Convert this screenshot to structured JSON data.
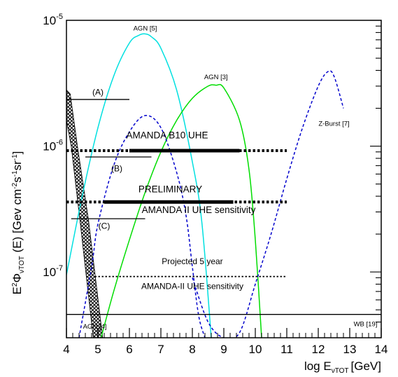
{
  "chart_data": {
    "type": "line",
    "xlabel": "log E",
    "xlabel_sub": "νTOT",
    "xlabel_unit": "[GeV]",
    "ylabel": "E",
    "ylabel_sup": "2",
    "ylabel_mid": "Φ",
    "ylabel_sub": "νTOT",
    "ylabel_tail": " (E) [Gev cm",
    "ylabel_unit_sup1": "-2",
    "ylabel_unit_mid1": "s",
    "ylabel_unit_sup2": "-1",
    "ylabel_unit_mid2": "sr",
    "ylabel_unit_sup3": "-1",
    "ylabel_unit_end": "]",
    "xlim": [
      4,
      14
    ],
    "ylim": [
      3e-08,
      1e-05
    ],
    "yscale": "log",
    "x_ticks": [
      4,
      5,
      6,
      7,
      8,
      9,
      10,
      11,
      12,
      13,
      14
    ],
    "x_tick_labels": [
      "4",
      "5",
      "6",
      "7",
      "8",
      "9",
      "10",
      "11",
      "12",
      "13",
      "14"
    ],
    "y_ticks": [
      {
        "value": 1e-05,
        "base": "10",
        "exp": "-5"
      },
      {
        "value": 1e-06,
        "base": "10",
        "exp": "-6"
      },
      {
        "value": 1e-07,
        "base": "10",
        "exp": "-7"
      }
    ],
    "series": [
      {
        "name": "AGN [5]",
        "color": "#00e0e0",
        "style": "solid",
        "x": [
          4.0,
          4.5,
          5.0,
          5.5,
          6.0,
          6.3,
          6.5,
          6.7,
          7.0,
          7.5,
          8.0,
          8.3,
          8.6
        ],
        "y": [
          9.5e-08,
          4e-07,
          1.4e-06,
          3.6e-06,
          6.6e-06,
          7.6e-06,
          7.8e-06,
          7.4e-06,
          6e-06,
          2.8e-06,
          7.5e-07,
          2.5e-07,
          3e-08
        ]
      },
      {
        "name": "AGN [3]",
        "color": "#00dd00",
        "style": "solid",
        "x": [
          5.1,
          5.5,
          6.0,
          6.5,
          7.0,
          7.5,
          8.0,
          8.5,
          8.75,
          9.0,
          9.5,
          9.8,
          10.0,
          10.2
        ],
        "y": [
          3e-08,
          7e-08,
          1.8e-07,
          4.3e-07,
          9e-07,
          1.6e-06,
          2.4e-06,
          3e-06,
          3.05e-06,
          2.9e-06,
          1.6e-06,
          6.5e-07,
          1.8e-07,
          3e-08
        ]
      },
      {
        "name": "AGN (dashed)",
        "color": "#0000cc",
        "style": "dashed",
        "x": [
          4.4,
          4.8,
          5.0,
          5.5,
          6.0,
          6.5,
          7.0,
          7.5,
          7.8,
          8.0,
          8.2,
          8.4
        ],
        "y": [
          3e-08,
          1.1e-07,
          2.4e-07,
          7e-07,
          1.3e-06,
          1.75e-06,
          1.4e-06,
          6.2e-07,
          2.8e-07,
          1.1e-07,
          4.5e-08,
          3e-08
        ]
      },
      {
        "name": "Z-Burst [7]",
        "color": "#0000cc",
        "style": "dashed",
        "x": [
          8.0,
          8.5,
          9.0,
          9.5,
          10.0,
          10.5,
          11.0,
          11.5,
          12.0,
          12.3,
          12.5,
          12.8
        ],
        "y": [
          9e-08,
          4e-08,
          3e-08,
          3.3e-08,
          8e-08,
          2e-07,
          5.5e-07,
          1.4e-06,
          3e-06,
          3.9e-06,
          3.6e-06,
          2e-06
        ]
      }
    ],
    "hlines": [
      {
        "name": "(A)",
        "x": [
          4.0,
          6.0
        ],
        "y": 2.35e-06,
        "style": "thin"
      },
      {
        "name": "(B)",
        "x": [
          4.6,
          6.7
        ],
        "y": 8.2e-07,
        "style": "thin"
      },
      {
        "name": "(C)",
        "x": [
          4.15,
          6.5
        ],
        "y": 2.65e-07,
        "style": "thin"
      },
      {
        "name": "AMANDA B10 UHE (dotted)",
        "x": [
          4.0,
          11.0
        ],
        "y": 9.2e-07,
        "style": "dotted-thick"
      },
      {
        "name": "AMANDA B10 UHE (solid)",
        "x": [
          6.0,
          9.5
        ],
        "y": 9.2e-07,
        "style": "solid-thick"
      },
      {
        "name": "AMANDA II UHE sensitivity (dotted)",
        "x": [
          4.0,
          11.0
        ],
        "y": 3.6e-07,
        "style": "dotted-thick"
      },
      {
        "name": "AMANDA II UHE sensitivity (solid)",
        "x": [
          5.2,
          9.3
        ],
        "y": 3.6e-07,
        "style": "solid-thick"
      },
      {
        "name": "Projected 5 year (dotted)",
        "x": [
          4.9,
          11.0
        ],
        "y": 9.2e-08,
        "style": "dotted"
      },
      {
        "name": "WB [19]",
        "x": [
          4.0,
          14.0
        ],
        "y": 4.6e-08,
        "style": "thin"
      }
    ],
    "hatched_region": {
      "name": "AGN [4]",
      "polygon": [
        [
          4.0,
          2.8e-06
        ],
        [
          4.12,
          2.6e-06
        ],
        [
          4.35,
          1e-06
        ],
        [
          4.7,
          2.6e-07
        ],
        [
          5.15,
          3e-08
        ],
        [
          4.85,
          3e-08
        ],
        [
          4.45,
          2.3e-07
        ],
        [
          4.15,
          1e-06
        ],
        [
          4.0,
          1.6e-06
        ]
      ]
    },
    "annotations": [
      {
        "text": "AGN [5]",
        "x": 6.5,
        "y": 8.3e-06,
        "size": "small",
        "anchor": "middle"
      },
      {
        "text": "AGN [3]",
        "x": 8.75,
        "y": 3.4e-06,
        "size": "small",
        "anchor": "middle"
      },
      {
        "text": "(A)",
        "x": 5.0,
        "y": 2.55e-06,
        "size": "mid",
        "anchor": "middle"
      },
      {
        "text": "(B)",
        "x": 5.6,
        "y": 6.3e-07,
        "size": "mid",
        "anchor": "middle"
      },
      {
        "text": "(C)",
        "x": 5.2,
        "y": 2.2e-07,
        "size": "mid",
        "anchor": "middle"
      },
      {
        "text": "Z-Burst [7]",
        "x": 12.5,
        "y": 1.45e-06,
        "size": "small",
        "anchor": "middle"
      },
      {
        "text": "AMANDA B10 UHE",
        "x": 7.2,
        "y": 1.15e-06,
        "size": "big",
        "anchor": "middle"
      },
      {
        "text": "PRELIMINARY",
        "x": 7.3,
        "y": 4.3e-07,
        "size": "big",
        "anchor": "middle"
      },
      {
        "text": "AMANDA II UHE sensitivity",
        "x": 8.2,
        "y": 2.95e-07,
        "size": "big",
        "anchor": "middle"
      },
      {
        "text": "Projected 5 year",
        "x": 8.0,
        "y": 1.15e-07,
        "size": "mid",
        "anchor": "middle"
      },
      {
        "text": "AMANDA-II UHE sensitivity",
        "x": 8.0,
        "y": 7.3e-08,
        "size": "mid",
        "anchor": "middle"
      },
      {
        "text": "AGN [4]",
        "x": 4.9,
        "y": 3.55e-08,
        "size": "small",
        "anchor": "middle"
      },
      {
        "text": "WB [19]",
        "x": 13.5,
        "y": 3.7e-08,
        "size": "small",
        "anchor": "middle"
      }
    ],
    "grid": false,
    "legend": "none"
  }
}
